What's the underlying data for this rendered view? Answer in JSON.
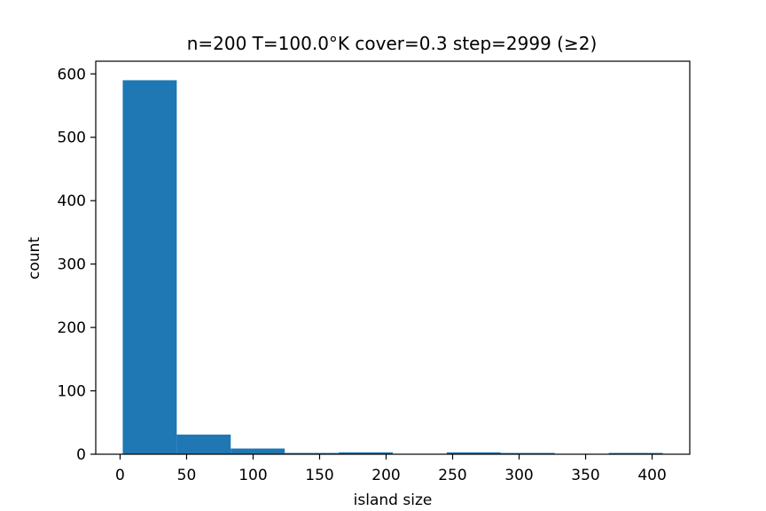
{
  "chart_data": {
    "type": "bar",
    "title": "n=200 T=100.0°K cover=0.3 step=2999 (≥2)",
    "xlabel": "island size",
    "ylabel": "count",
    "xlim": [
      -18.3,
      428.3
    ],
    "ylim": [
      0,
      620
    ],
    "xticks": [
      0,
      50,
      100,
      150,
      200,
      250,
      300,
      350,
      400
    ],
    "yticks": [
      0,
      100,
      200,
      300,
      400,
      500,
      600
    ],
    "bins": [
      {
        "start": 2.0,
        "end": 42.6,
        "count": 590
      },
      {
        "start": 42.6,
        "end": 83.2,
        "count": 31
      },
      {
        "start": 83.2,
        "end": 123.8,
        "count": 9
      },
      {
        "start": 123.8,
        "end": 164.4,
        "count": 2
      },
      {
        "start": 164.4,
        "end": 205.0,
        "count": 3
      },
      {
        "start": 205.0,
        "end": 245.6,
        "count": 0
      },
      {
        "start": 245.6,
        "end": 286.2,
        "count": 3
      },
      {
        "start": 286.2,
        "end": 326.8,
        "count": 2
      },
      {
        "start": 326.8,
        "end": 367.4,
        "count": 0
      },
      {
        "start": 367.4,
        "end": 408.0,
        "count": 2
      }
    ],
    "bar_color": "#1f77b4"
  }
}
